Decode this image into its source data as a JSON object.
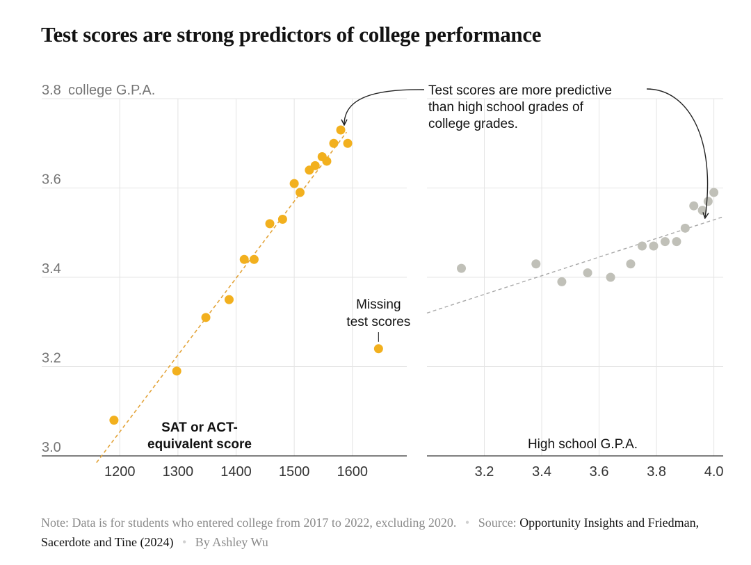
{
  "title": "Test scores are strong predictors of college performance",
  "chart_data": [
    {
      "type": "scatter",
      "name": "test-scores",
      "ylabel_tick": "college G.P.A.",
      "xlabel_lines": [
        "SAT or ACT-",
        "equivalent score"
      ],
      "xlim": [
        1110,
        1690
      ],
      "ylim": [
        3.0,
        3.8
      ],
      "xticks": [
        1200,
        1300,
        1400,
        1500,
        1600
      ],
      "xtick_labels": [
        "1200",
        "1300",
        "1400",
        "1500",
        "1600"
      ],
      "yticks": [
        3.0,
        3.2,
        3.4,
        3.6,
        3.8
      ],
      "ytick_labels": [
        "3.0",
        "3.2",
        "3.4",
        "3.6",
        "3.8"
      ],
      "color": "#f2b01e",
      "trend_color": "#e3a43a",
      "points": [
        {
          "x": 1190,
          "y": 3.08
        },
        {
          "x": 1298,
          "y": 3.19
        },
        {
          "x": 1348,
          "y": 3.31
        },
        {
          "x": 1388,
          "y": 3.35
        },
        {
          "x": 1414,
          "y": 3.44
        },
        {
          "x": 1431,
          "y": 3.44
        },
        {
          "x": 1458,
          "y": 3.52
        },
        {
          "x": 1480,
          "y": 3.53
        },
        {
          "x": 1500,
          "y": 3.61
        },
        {
          "x": 1510,
          "y": 3.59
        },
        {
          "x": 1526,
          "y": 3.64
        },
        {
          "x": 1536,
          "y": 3.65
        },
        {
          "x": 1548,
          "y": 3.67
        },
        {
          "x": 1556,
          "y": 3.66
        },
        {
          "x": 1568,
          "y": 3.7
        },
        {
          "x": 1580,
          "y": 3.73
        },
        {
          "x": 1592,
          "y": 3.7
        }
      ],
      "missing_point": {
        "x": 1645,
        "y": 3.24
      },
      "missing_label_lines": [
        "Missing",
        "test scores"
      ],
      "trend": {
        "x0": 1160,
        "y0": 2.985,
        "x1": 1590,
        "y1": 3.725
      }
    },
    {
      "type": "scatter",
      "name": "hs-gpa",
      "xlabel": "High school G.P.A.",
      "xlim": [
        3.0,
        4.03
      ],
      "ylim": [
        3.0,
        3.8
      ],
      "xticks": [
        3.2,
        3.4,
        3.6,
        3.8,
        4.0
      ],
      "xtick_labels": [
        "3.2",
        "3.4",
        "3.6",
        "3.8",
        "4.0"
      ],
      "color": "#c0c0b8",
      "trend_color": "#a8a8a8",
      "points": [
        {
          "x": 3.12,
          "y": 3.42
        },
        {
          "x": 3.38,
          "y": 3.43
        },
        {
          "x": 3.47,
          "y": 3.39
        },
        {
          "x": 3.56,
          "y": 3.41
        },
        {
          "x": 3.64,
          "y": 3.4
        },
        {
          "x": 3.71,
          "y": 3.43
        },
        {
          "x": 3.75,
          "y": 3.47
        },
        {
          "x": 3.79,
          "y": 3.47
        },
        {
          "x": 3.83,
          "y": 3.48
        },
        {
          "x": 3.87,
          "y": 3.48
        },
        {
          "x": 3.9,
          "y": 3.51
        },
        {
          "x": 3.93,
          "y": 3.56
        },
        {
          "x": 3.96,
          "y": 3.55
        },
        {
          "x": 3.98,
          "y": 3.57
        },
        {
          "x": 4.0,
          "y": 3.59
        }
      ],
      "trend": {
        "x0": 3.0,
        "y0": 3.32,
        "x1": 4.03,
        "y1": 3.535
      }
    }
  ],
  "annotation_lines": [
    "Test scores are more predictive",
    "than high school grades of",
    "college grades."
  ],
  "footer": {
    "note_label": "Note:",
    "note_text": "Data is for students who entered college from 2017 to 2022, excluding 2020.",
    "source_label": "Source:",
    "source_text": "Opportunity Insights and Friedman, Sacerdote and Tine (2024)",
    "byline": "By Ashley Wu"
  }
}
